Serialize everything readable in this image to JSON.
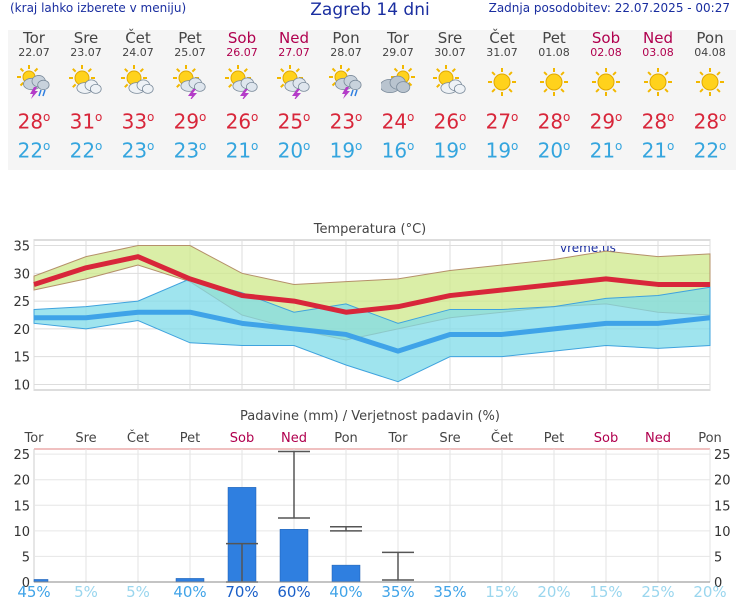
{
  "header": {
    "menu_hint": "(kraj lahko izberete v meniju)",
    "title": "Zagreb 14 dni",
    "updated": "Zadnja posodobitev: 22.07.2025 - 00:27"
  },
  "days": [
    {
      "name": "Tor",
      "date": "22.07",
      "weekend": false,
      "icon": "thunderstorm-rain-icon",
      "tmax": "28",
      "tmin": "22"
    },
    {
      "name": "Sre",
      "date": "23.07",
      "weekend": false,
      "icon": "sun-cloud-icon",
      "tmax": "31",
      "tmin": "22"
    },
    {
      "name": "Čet",
      "date": "24.07",
      "weekend": false,
      "icon": "sun-cloud-icon",
      "tmax": "33",
      "tmin": "23"
    },
    {
      "name": "Pet",
      "date": "25.07",
      "weekend": false,
      "icon": "sun-lightning-icon",
      "tmax": "29",
      "tmin": "23"
    },
    {
      "name": "Sob",
      "date": "26.07",
      "weekend": true,
      "icon": "sun-lightning-icon",
      "tmax": "26",
      "tmin": "21"
    },
    {
      "name": "Ned",
      "date": "27.07",
      "weekend": true,
      "icon": "sun-lightning-icon",
      "tmax": "25",
      "tmin": "20"
    },
    {
      "name": "Pon",
      "date": "28.07",
      "weekend": false,
      "icon": "thunderstorm-rain-icon",
      "tmax": "23",
      "tmin": "19"
    },
    {
      "name": "Tor",
      "date": "29.07",
      "weekend": false,
      "icon": "cloudy-icon",
      "tmax": "24",
      "tmin": "16"
    },
    {
      "name": "Sre",
      "date": "30.07",
      "weekend": false,
      "icon": "sun-cloud-icon",
      "tmax": "26",
      "tmin": "19"
    },
    {
      "name": "Čet",
      "date": "31.07",
      "weekend": false,
      "icon": "sun-icon",
      "tmax": "27",
      "tmin": "19"
    },
    {
      "name": "Pet",
      "date": "01.08",
      "weekend": false,
      "icon": "sun-icon",
      "tmax": "28",
      "tmin": "20"
    },
    {
      "name": "Sob",
      "date": "02.08",
      "weekend": true,
      "icon": "sun-icon",
      "tmax": "29",
      "tmin": "21"
    },
    {
      "name": "Ned",
      "date": "03.08",
      "weekend": true,
      "icon": "sun-icon",
      "tmax": "28",
      "tmin": "21"
    },
    {
      "name": "Pon",
      "date": "04.08",
      "weekend": false,
      "icon": "sun-icon",
      "tmax": "28",
      "tmin": "22"
    }
  ],
  "degree_symbol": "o",
  "colors": {
    "max": "#d8263a",
    "min": "#34a5de",
    "weekend": "#b0004e",
    "bar": "#2f7fe0",
    "title": "#1a2ea0"
  },
  "chart_data": [
    {
      "type": "line",
      "title": "Temperatura (°C)",
      "watermark": "vreme.us",
      "ylim": [
        9,
        36
      ],
      "yticks": [
        10,
        15,
        20,
        25,
        30,
        35
      ],
      "x": [
        0,
        1,
        2,
        3,
        4,
        5,
        6,
        7,
        8,
        9,
        10,
        11,
        12,
        13
      ],
      "series": [
        {
          "role": "max",
          "values": [
            28,
            31,
            33,
            29,
            26,
            25,
            23,
            24,
            26,
            27,
            28,
            29,
            28,
            28
          ]
        },
        {
          "role": "max_upper",
          "values": [
            29.5,
            33,
            35,
            35,
            30,
            28,
            28.5,
            29,
            30.5,
            31.5,
            32.5,
            34,
            33,
            33.5
          ]
        },
        {
          "role": "max_lower",
          "values": [
            27,
            29,
            31.5,
            28.5,
            22.5,
            20,
            18,
            20,
            22,
            23,
            24,
            24.5,
            23,
            22.5
          ]
        },
        {
          "role": "min",
          "values": [
            22,
            22,
            23,
            23,
            21,
            20,
            19,
            16,
            19,
            19,
            20,
            21,
            21,
            22
          ]
        },
        {
          "role": "min_upper",
          "values": [
            23.5,
            24,
            25,
            29,
            26.5,
            23,
            24.5,
            21,
            23.5,
            23.5,
            24,
            25.5,
            26,
            27.5
          ]
        },
        {
          "role": "min_lower",
          "values": [
            21,
            20,
            21.5,
            17.5,
            17,
            17,
            13.5,
            10.5,
            15,
            15,
            16,
            17,
            16.5,
            17
          ]
        }
      ]
    },
    {
      "type": "bar",
      "title": "Padavine (mm) / Verjetnost padavin (%)",
      "categories": [
        "Tor",
        "Sre",
        "Čet",
        "Pet",
        "Sob",
        "Ned",
        "Pon",
        "Tor",
        "Sre",
        "Čet",
        "Pet",
        "Sob",
        "Ned",
        "Pon"
      ],
      "weekend": [
        false,
        false,
        false,
        false,
        true,
        true,
        false,
        false,
        false,
        false,
        false,
        true,
        true,
        false
      ],
      "ylim": [
        0,
        26
      ],
      "yticks": [
        0,
        5,
        10,
        15,
        20,
        25
      ],
      "values": [
        0.5,
        0,
        0,
        0.7,
        18.5,
        10.3,
        3.3,
        0,
        0,
        0,
        0,
        0,
        0,
        0
      ],
      "error_low": [
        0,
        0,
        0,
        0,
        0,
        12.5,
        10,
        0.4,
        0,
        0,
        0,
        0,
        0,
        0
      ],
      "error_high": [
        0,
        0,
        0,
        0,
        7.5,
        25.5,
        10.8,
        5.8,
        0,
        0,
        0,
        0,
        0,
        0
      ],
      "probability": [
        "45%",
        "5%",
        "5%",
        "40%",
        "70%",
        "60%",
        "40%",
        "35%",
        "35%",
        "15%",
        "20%",
        "15%",
        "25%",
        "20%"
      ]
    }
  ]
}
